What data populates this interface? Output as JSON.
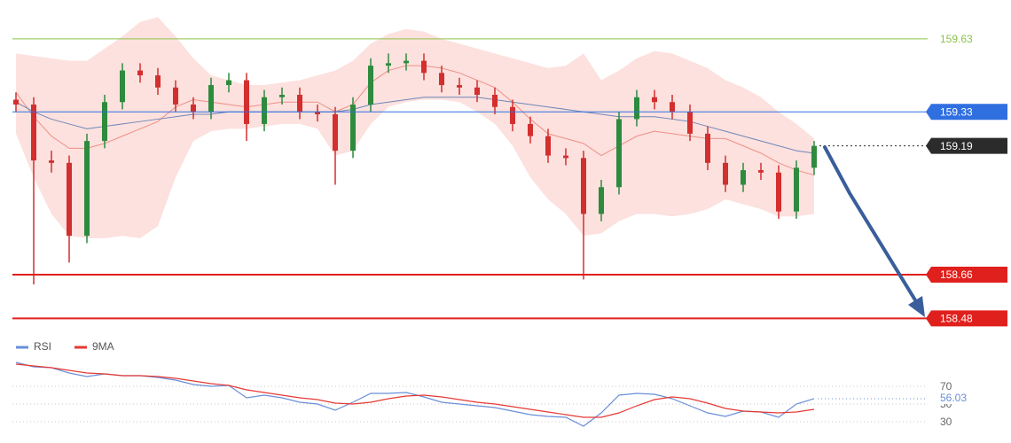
{
  "chart_data": [
    {
      "type": "candlestick",
      "ylim": [
        158.405,
        159.79
      ],
      "up_color": "#2e8b3e",
      "down_color": "#d32f2f",
      "open": [
        159.38,
        159.36,
        159.13,
        159.12,
        158.82,
        159.21,
        159.37,
        159.5,
        159.48,
        159.43,
        159.36,
        159.33,
        159.44,
        159.46,
        159.28,
        159.39,
        159.4,
        159.33,
        159.32,
        159.17,
        159.36,
        159.52,
        159.53,
        159.54,
        159.49,
        159.44,
        159.43,
        159.4,
        159.35,
        159.28,
        159.23,
        159.15,
        159.14,
        158.91,
        159.02,
        159.3,
        159.39,
        159.37,
        159.33,
        159.24,
        159.12,
        159.03,
        159.09,
        159.08,
        158.92,
        159.1
      ],
      "high": [
        159.41,
        159.39,
        159.17,
        159.15,
        159.24,
        159.4,
        159.53,
        159.53,
        159.51,
        159.46,
        159.39,
        159.47,
        159.49,
        159.49,
        159.42,
        159.43,
        159.43,
        159.36,
        159.35,
        159.39,
        159.55,
        159.57,
        159.57,
        159.57,
        159.52,
        159.47,
        159.46,
        159.43,
        159.38,
        159.31,
        159.26,
        159.18,
        159.17,
        159.05,
        159.33,
        159.42,
        159.42,
        159.4,
        159.36,
        159.27,
        159.15,
        159.12,
        159.12,
        159.11,
        159.13,
        159.21
      ],
      "low": [
        159.33,
        158.62,
        159.08,
        158.71,
        158.79,
        159.18,
        159.34,
        159.45,
        159.4,
        159.33,
        159.3,
        159.3,
        159.41,
        159.21,
        159.25,
        159.36,
        159.3,
        159.29,
        159.03,
        159.14,
        159.33,
        159.49,
        159.5,
        159.46,
        159.41,
        159.4,
        159.37,
        159.32,
        159.25,
        159.2,
        159.12,
        159.11,
        158.64,
        158.88,
        158.99,
        159.27,
        159.34,
        159.3,
        159.21,
        159.09,
        159.0,
        159.0,
        159.05,
        158.89,
        158.89,
        159.07
      ],
      "close": [
        159.36,
        159.13,
        159.12,
        158.82,
        159.21,
        159.37,
        159.5,
        159.48,
        159.43,
        159.36,
        159.33,
        159.44,
        159.46,
        159.28,
        159.39,
        159.4,
        159.33,
        159.32,
        159.17,
        159.36,
        159.52,
        159.53,
        159.54,
        159.49,
        159.44,
        159.43,
        159.4,
        159.35,
        159.28,
        159.23,
        159.15,
        159.14,
        158.91,
        159.02,
        159.3,
        159.39,
        159.37,
        159.33,
        159.24,
        159.12,
        159.03,
        159.09,
        159.08,
        158.92,
        159.1,
        159.19
      ],
      "band": {
        "color": "#fbdcd8",
        "upper": [
          159.57,
          159.56,
          159.55,
          159.54,
          159.54,
          159.59,
          159.64,
          159.7,
          159.72,
          159.64,
          159.55,
          159.48,
          159.46,
          159.44,
          159.44,
          159.45,
          159.46,
          159.48,
          159.5,
          159.54,
          159.61,
          159.65,
          159.67,
          159.66,
          159.63,
          159.61,
          159.59,
          159.57,
          159.55,
          159.53,
          159.51,
          159.52,
          159.57,
          159.46,
          159.5,
          159.55,
          159.58,
          159.57,
          159.54,
          159.51,
          159.46,
          159.43,
          159.39,
          159.33,
          159.28,
          159.22
        ],
        "lower": [
          159.24,
          159.06,
          158.91,
          158.82,
          158.81,
          158.81,
          158.82,
          158.81,
          158.86,
          159.06,
          159.21,
          159.25,
          159.26,
          159.26,
          159.27,
          159.28,
          159.28,
          159.26,
          159.15,
          159.17,
          159.28,
          159.35,
          159.37,
          159.38,
          159.38,
          159.37,
          159.33,
          159.28,
          159.19,
          159.06,
          158.97,
          158.91,
          158.82,
          158.83,
          158.88,
          158.91,
          158.91,
          158.9,
          158.91,
          158.93,
          158.97,
          158.95,
          158.93,
          158.9,
          158.9,
          158.91
        ]
      },
      "overlays": [
        {
          "color": "#ef8f86",
          "values": [
            159.41,
            159.31,
            159.23,
            159.18,
            159.18,
            159.2,
            159.23,
            159.26,
            159.29,
            159.35,
            159.38,
            159.37,
            159.36,
            159.35,
            159.36,
            159.37,
            159.37,
            159.37,
            159.33,
            159.36,
            159.45,
            159.5,
            159.52,
            159.52,
            159.51,
            159.49,
            159.46,
            159.43,
            159.37,
            159.3,
            159.24,
            159.22,
            159.2,
            159.15,
            159.19,
            159.23,
            159.25,
            159.24,
            159.23,
            159.22,
            159.22,
            159.19,
            159.16,
            159.12,
            159.09,
            159.07
          ]
        },
        {
          "color": "#6f86b8",
          "values": [
            159.37,
            159.33,
            159.3,
            159.28,
            159.26,
            159.27,
            159.28,
            159.29,
            159.3,
            159.31,
            159.32,
            159.32,
            159.33,
            159.33,
            159.33,
            159.33,
            159.33,
            159.33,
            159.33,
            159.34,
            159.36,
            159.37,
            159.38,
            159.39,
            159.39,
            159.39,
            159.39,
            159.38,
            159.37,
            159.36,
            159.35,
            159.34,
            159.33,
            159.32,
            159.31,
            159.31,
            159.31,
            159.3,
            159.29,
            159.27,
            159.25,
            159.23,
            159.21,
            159.19,
            159.17,
            159.16
          ]
        }
      ],
      "levels": [
        {
          "value": 159.63,
          "color": "#8bc34a",
          "boxed": false,
          "dotted": false,
          "bold": false
        },
        {
          "value": 159.33,
          "color": "#2f6fe0",
          "boxed": true,
          "dotted": false,
          "bold": false
        },
        {
          "value": 159.19,
          "color": "#2b2b2b",
          "boxed": true,
          "dotted": true,
          "bold": false
        },
        {
          "value": 158.66,
          "color": "#e0201c",
          "boxed": true,
          "dotted": false,
          "bold": true
        },
        {
          "value": 158.48,
          "color": "#e0201c",
          "boxed": true,
          "dotted": false,
          "bold": true
        }
      ]
    },
    {
      "type": "line",
      "ylim": [
        6,
        100
      ],
      "yticks": [
        70,
        50,
        30
      ],
      "grid": true,
      "series": [
        {
          "name": "RSI",
          "color": "#6a8fd8",
          "values": [
            97,
            92,
            91,
            85,
            81,
            84,
            82,
            82,
            80,
            77,
            72,
            70,
            71,
            57,
            60,
            57,
            52,
            50,
            43,
            52,
            62,
            62,
            63,
            58,
            52,
            50,
            48,
            46,
            42,
            38,
            36,
            35,
            25,
            40,
            60,
            62,
            61,
            56,
            48,
            40,
            36,
            42,
            41,
            35,
            50,
            56.03
          ]
        },
        {
          "name": "9MA",
          "color": "#e53935",
          "values": [
            95,
            93,
            91,
            88,
            85,
            84,
            82,
            82,
            81,
            79,
            76,
            73,
            71,
            66,
            63,
            60,
            57,
            55,
            51,
            50,
            52,
            56,
            59,
            60,
            58,
            55,
            52,
            50,
            47,
            44,
            41,
            38,
            35,
            35,
            40,
            48,
            55,
            58,
            56,
            51,
            45,
            42,
            41,
            40,
            41,
            44
          ]
        }
      ]
    }
  ]
}
